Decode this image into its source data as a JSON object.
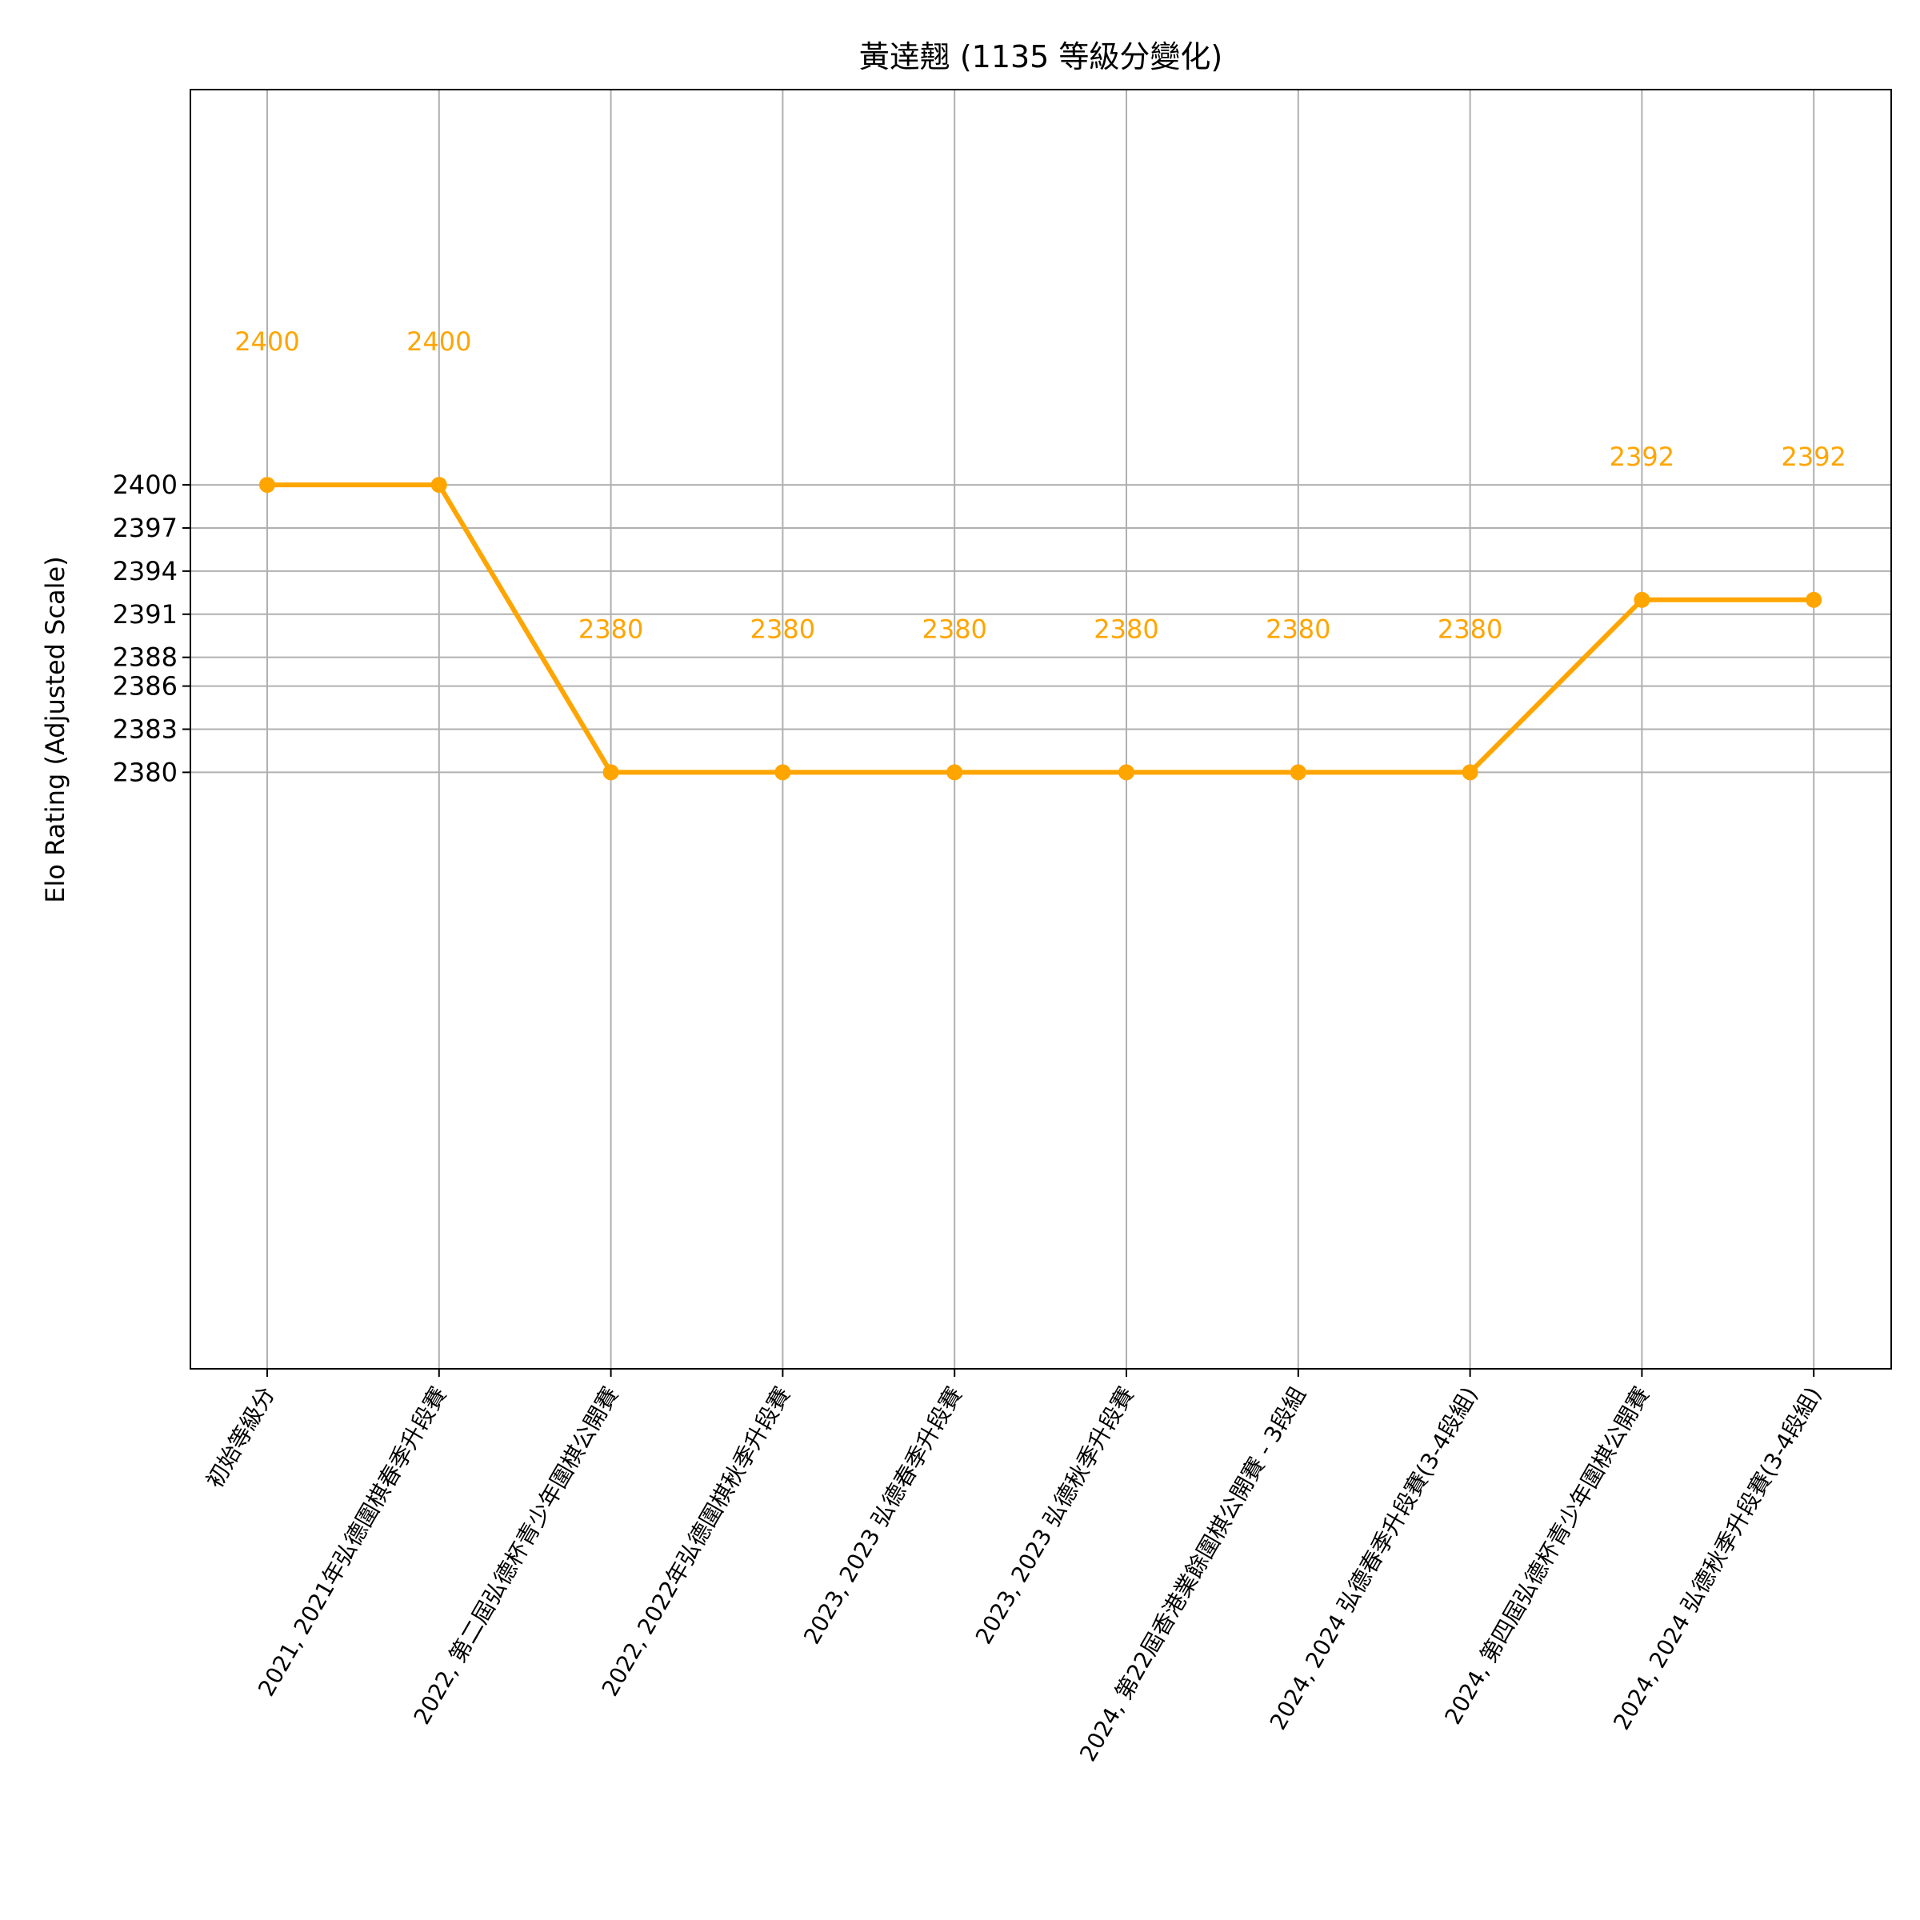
{
  "chart_data": {
    "type": "line",
    "title": "黃逹翹 (1135 等級分變化)",
    "xlabel": "",
    "ylabel": "Elo Rating (Adjusted Scale)",
    "categories": [
      "初始等級分",
      "2021, 2021年弘德圍棋春季升段賽",
      "2022, 第二屆弘德杯青少年圍棋公開賽",
      "2022, 2022年弘德圍棋秋季升段賽",
      "2023, 2023 弘德春季升段賽",
      "2023, 2023 弘德秋季升段賽",
      "2024, 第22屆香港業餘圍棋公開賽 - 3段組",
      "2024, 2024 弘德春季升段賽(3-4段組)",
      "2024, 第四屆弘德杯青少年圍棋公開賽",
      "2024, 2024 弘德秋季升段賽(3-4段組)"
    ],
    "series": [
      {
        "values": [
          2400,
          2400,
          2380,
          2380,
          2380,
          2380,
          2380,
          2380,
          2392,
          2392
        ],
        "color": "#FFA500"
      }
    ],
    "data_labels": [
      "2400",
      "2400",
      "2380",
      "2380",
      "2380",
      "2380",
      "2380",
      "2380",
      "2392",
      "2392"
    ],
    "yticks": [
      2380,
      2383,
      2386,
      2388,
      2391,
      2394,
      2397,
      2400
    ],
    "ytick_labels": [
      "2380",
      "2383",
      "2386",
      "2388",
      "2391",
      "2394",
      "2397",
      "2400"
    ],
    "ylim": [
      2338.5,
      2427.5
    ],
    "grid": true,
    "legend": "none"
  }
}
